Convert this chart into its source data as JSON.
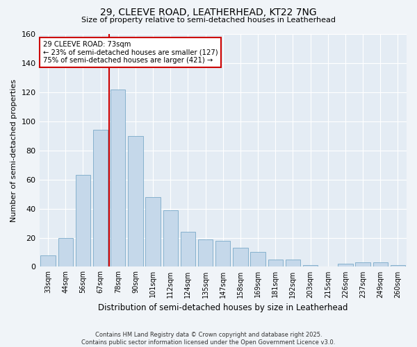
{
  "title1": "29, CLEEVE ROAD, LEATHERHEAD, KT22 7NG",
  "title2": "Size of property relative to semi-detached houses in Leatherhead",
  "xlabel": "Distribution of semi-detached houses by size in Leatherhead",
  "ylabel": "Number of semi-detached properties",
  "categories": [
    "33sqm",
    "44sqm",
    "56sqm",
    "67sqm",
    "78sqm",
    "90sqm",
    "101sqm",
    "112sqm",
    "124sqm",
    "135sqm",
    "147sqm",
    "158sqm",
    "169sqm",
    "181sqm",
    "192sqm",
    "203sqm",
    "215sqm",
    "226sqm",
    "237sqm",
    "249sqm",
    "260sqm"
  ],
  "values": [
    8,
    20,
    63,
    94,
    122,
    90,
    48,
    39,
    24,
    19,
    18,
    13,
    10,
    5,
    5,
    1,
    0,
    2,
    3,
    3,
    1
  ],
  "bar_color": "#c5d8ea",
  "bar_edge_color": "#7aaac8",
  "vline_x": 3.5,
  "vline_color": "#cc0000",
  "annotation_line1": "29 CLEEVE ROAD: 73sqm",
  "annotation_line2": "← 23% of semi-detached houses are smaller (127)",
  "annotation_line3": "75% of semi-detached houses are larger (421) →",
  "annotation_box_color": "#cc0000",
  "ylim": [
    0,
    160
  ],
  "yticks": [
    0,
    20,
    40,
    60,
    80,
    100,
    120,
    140,
    160
  ],
  "footnote": "Contains HM Land Registry data © Crown copyright and database right 2025.\nContains public sector information licensed under the Open Government Licence v3.0.",
  "bg_color": "#f0f4f8",
  "plot_bg_color": "#e4ecf4"
}
